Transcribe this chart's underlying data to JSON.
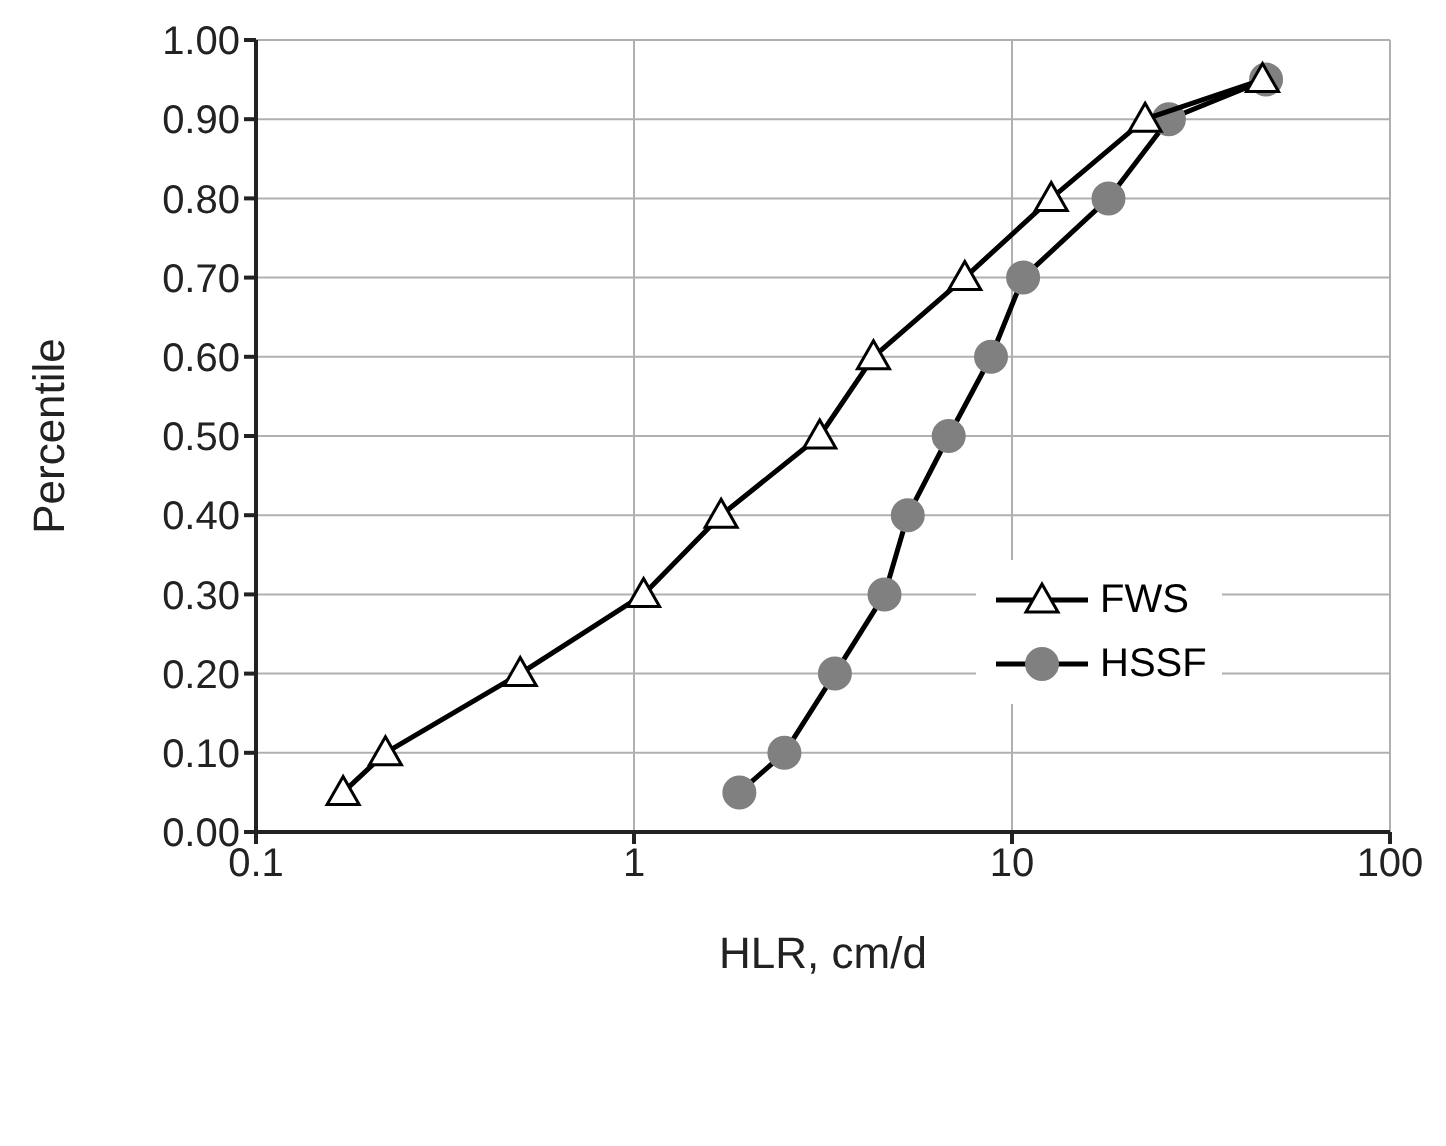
{
  "chart_data": {
    "type": "line",
    "xlabel": "HLR, cm/d",
    "ylabel": "Percentile",
    "log": "x",
    "grid": true,
    "legend": "right",
    "xlim": [
      0.1,
      100
    ],
    "xticks": [
      0.1,
      1,
      10,
      100
    ],
    "ylim": [
      0,
      1
    ],
    "yticks": [
      {
        "value": 0,
        "label": "0.00"
      },
      {
        "value": 0.1,
        "label": "0.10"
      },
      {
        "value": 0.2,
        "label": "0.20"
      },
      {
        "value": 0.3,
        "label": "0.30"
      },
      {
        "value": 0.4,
        "label": "0.40"
      },
      {
        "value": 0.5,
        "label": "0.50"
      },
      {
        "value": 0.6,
        "label": "0.60"
      },
      {
        "value": 0.7,
        "label": "0.70"
      },
      {
        "value": 0.8,
        "label": "0.80"
      },
      {
        "value": 0.9,
        "label": "0.90"
      },
      {
        "value": 1,
        "label": "1.00"
      }
    ],
    "series": [
      {
        "name": "FWS",
        "color": "#000000",
        "marker": "triangle",
        "x": [
          0.17,
          0.22,
          0.5,
          1.06,
          1.7,
          3.1,
          4.3,
          7.5,
          12.7,
          22.5,
          46
        ],
        "values": [
          0.05,
          0.1,
          0.2,
          0.3,
          0.4,
          0.5,
          0.6,
          0.7,
          0.8,
          0.9,
          0.95
        ]
      },
      {
        "name": "HSSF",
        "color": "#808080",
        "marker": "circle",
        "x": [
          1.9,
          2.5,
          3.4,
          4.6,
          5.3,
          6.8,
          8.8,
          10.7,
          18,
          26,
          47
        ],
        "values": [
          0.05,
          0.1,
          0.2,
          0.3,
          0.4,
          0.5,
          0.6,
          0.7,
          0.8,
          0.9,
          0.95
        ]
      }
    ]
  }
}
